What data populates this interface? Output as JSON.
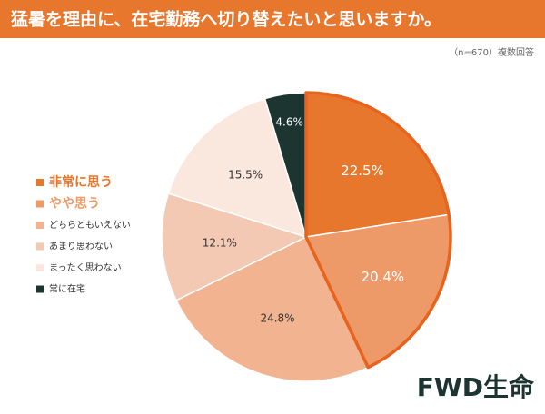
{
  "chart_data": {
    "type": "pie",
    "title": "猛暑を理由に、在宅勤務へ切り替えたいと思いますか。",
    "subtitle": "（n=670）複数回答",
    "categories": [
      "非常に思う",
      "やや思う",
      "どちらともいえない",
      "あまり思わない",
      "まったく思わない",
      "常に在宅"
    ],
    "values": [
      22.5,
      20.4,
      24.8,
      12.1,
      15.5,
      4.6
    ],
    "value_labels": [
      "22.5%",
      "20.4%",
      "24.8%",
      "12.1%",
      "15.5%",
      "4.6%"
    ],
    "colors": [
      "#e8772e",
      "#ed9a68",
      "#f1b390",
      "#f4c9b3",
      "#fae7dd",
      "#1c3530"
    ],
    "label_colors": [
      "#ffffff",
      "#ffffff",
      "#333333",
      "#333333",
      "#333333",
      "#ffffff"
    ],
    "legend_text_colors": [
      "#e8772e",
      "#ed9a68",
      "#333333",
      "#333333",
      "#333333",
      "#333333"
    ],
    "highlight_color": "#e8641e",
    "logo": "FWD生命"
  }
}
